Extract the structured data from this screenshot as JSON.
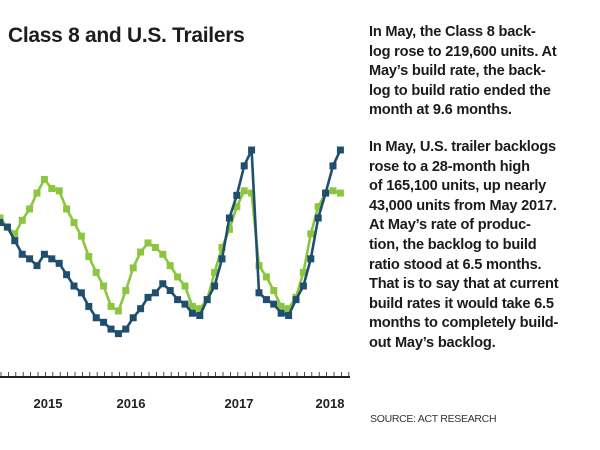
{
  "chart_data": {
    "type": "line",
    "title": "Class 8 and U.S. Trailers",
    "xlabel": "",
    "ylabel": "",
    "x_tick_labels": [
      "2015",
      "2016",
      "2017",
      "2018"
    ],
    "x_unit": "month",
    "ylim": [
      0,
      100
    ],
    "grid": false,
    "series": [
      {
        "color": "#8cc63f",
        "values": [
          70,
          66,
          63,
          69,
          74,
          81,
          87,
          83,
          82,
          74,
          68,
          62,
          53,
          46,
          40,
          31,
          29,
          38,
          48,
          55,
          59,
          57,
          54,
          49,
          44,
          40,
          31,
          30,
          34,
          46,
          57,
          65,
          75,
          82,
          81,
          49,
          44,
          38,
          31,
          30,
          35,
          46,
          63,
          75,
          81,
          82,
          81
        ]
      },
      {
        "color": "#1f4e6e",
        "values": [
          68,
          66,
          60,
          54,
          52,
          49,
          54,
          52,
          50,
          45,
          40,
          37,
          31,
          26,
          24,
          21,
          19,
          21,
          26,
          30,
          35,
          37,
          41,
          38,
          34,
          32,
          28,
          27,
          34,
          40,
          52,
          70,
          80,
          93,
          100,
          37,
          34,
          32,
          28,
          27,
          34,
          40,
          52,
          70,
          81,
          93,
          100
        ]
      }
    ]
  },
  "text": {
    "para1": [
      "In May, the Class 8 back-",
      "log rose to 219,600 units. At",
      "May’s build rate, the back-",
      "log to build ratio ended the",
      "month at 9.6 months."
    ],
    "para2": [
      "In May, U.S. trailer backlogs",
      "rose to a 28-month high",
      "of 165,100 units, up nearly",
      "43,000 units from May 2017.",
      "At May’s rate of produc-",
      "tion, the backlog to build",
      "ratio stood at 6.5 months.",
      "That is to say that at current",
      "build rates it would take 6.5",
      "months to completely build-",
      "out May’s backlog."
    ],
    "source": "SOURCE: ACT RESEARCH"
  }
}
